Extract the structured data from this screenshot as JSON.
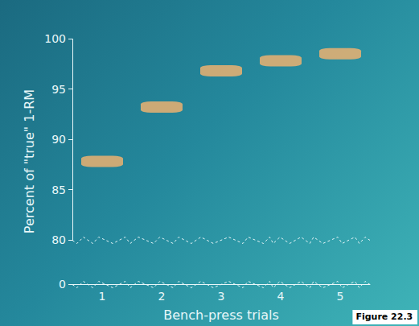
{
  "chart_data": {
    "type": "scatter",
    "x_label": "Bench-press trials",
    "y_label": "Percent of \"true\" 1-RM",
    "categories": [
      "1",
      "2",
      "3",
      "4",
      "5"
    ],
    "values": [
      87.8,
      93.2,
      96.8,
      97.8,
      98.5
    ],
    "color": "#f7b46e",
    "marker": "roundRect",
    "ylim": [
      0,
      100
    ],
    "yticks": [
      0,
      80,
      85,
      90,
      95,
      100
    ],
    "grid": false,
    "annotation": "Figure 22.3"
  }
}
